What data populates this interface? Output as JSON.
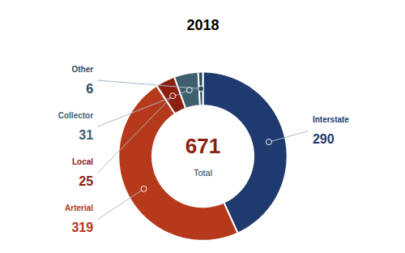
{
  "chart_data": {
    "type": "pie",
    "title": "2018",
    "categories": [
      "Interstate",
      "Arterial",
      "Local",
      "Collector",
      "Other"
    ],
    "values": [
      290,
      319,
      25,
      31,
      6
    ],
    "colors": [
      "#1e3a6e",
      "#b5391a",
      "#8b2010",
      "#3d5f6e",
      "#2c4a5a"
    ],
    "data_labels": true,
    "annotations": [
      "671",
      "Total"
    ]
  }
}
